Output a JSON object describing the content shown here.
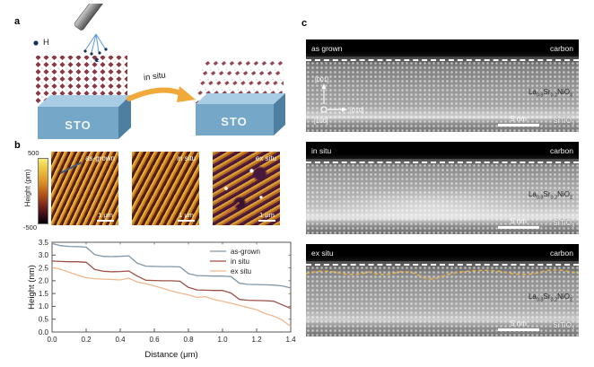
{
  "figure": {
    "panel_a": {
      "label": "a",
      "hydrogen_label": "H",
      "arrow_label": "in situ",
      "substrate_left": "STO",
      "substrate_right": "STO"
    },
    "panel_b": {
      "label": "b",
      "colorbar": {
        "max": "500",
        "min": "-500",
        "axis_label": "Height (pm)"
      },
      "afm": [
        {
          "label": "as-grown",
          "scale": "1 μm"
        },
        {
          "label": "in situ",
          "scale": "1 μm"
        },
        {
          "label": "ex situ",
          "scale": "1 μm"
        }
      ]
    },
    "panel_c": {
      "label": "c",
      "stem": [
        {
          "condition": "as grown",
          "coating": "carbon",
          "formula": {
            "el1": "La",
            "s1": "0.8",
            "el2": "Sr",
            "s2": "0.2",
            "el3": "NiO",
            "s3": "3"
          },
          "scale": "5 nm",
          "substrate": "SrTiO",
          "substrate_sub": "3",
          "dir_up": "[001]",
          "dir_right": "[010]",
          "dir_out": "[100]"
        },
        {
          "condition": "in situ",
          "coating": "carbon",
          "formula": {
            "el1": "La",
            "s1": "0.8",
            "el2": "Sr",
            "s2": "0.2",
            "el3": "NiO",
            "s3": "2"
          },
          "scale": "5 nm",
          "substrate": "SrTiO",
          "substrate_sub": "3"
        },
        {
          "condition": "ex situ",
          "coating": "carbon",
          "formula": {
            "el1": "La",
            "s1": "0.8",
            "el2": "Sr",
            "s2": "0.2",
            "el3": "NiO",
            "s3": "2"
          },
          "scale": "5 nm",
          "substrate": "SrTiO",
          "substrate_sub": "3"
        }
      ]
    }
  },
  "chart_data": {
    "type": "line",
    "title": "",
    "xlabel": "Distance (μm)",
    "ylabel": "Height (nm)",
    "xlim": [
      0,
      1.4
    ],
    "ylim": [
      0,
      3.5
    ],
    "xticks": [
      "0.0",
      "0.2",
      "0.4",
      "0.6",
      "0.8",
      "1.0",
      "1.2",
      "1.4"
    ],
    "yticks": [
      "0.0",
      "0.5",
      "1.0",
      "1.5",
      "2.0",
      "2.5",
      "3.0",
      "3.5"
    ],
    "grid": false,
    "legend_position": "top-right",
    "x": [
      0,
      0.05,
      0.1,
      0.15,
      0.2,
      0.25,
      0.3,
      0.35,
      0.4,
      0.45,
      0.5,
      0.55,
      0.6,
      0.65,
      0.7,
      0.75,
      0.8,
      0.85,
      0.9,
      0.95,
      1.0,
      1.05,
      1.1,
      1.15,
      1.2,
      1.25,
      1.3,
      1.35,
      1.4
    ],
    "series": [
      {
        "name": "as-grown",
        "color": "#8096a8",
        "values": [
          3.45,
          3.37,
          3.34,
          3.33,
          3.31,
          3.02,
          2.95,
          2.94,
          2.95,
          2.97,
          2.68,
          2.57,
          2.56,
          2.55,
          2.55,
          2.54,
          2.28,
          2.2,
          2.19,
          2.18,
          2.18,
          2.16,
          1.9,
          1.86,
          1.85,
          1.84,
          1.83,
          1.8,
          1.72
        ]
      },
      {
        "name": "in situ",
        "color": "#9c5046",
        "values": [
          2.77,
          2.75,
          2.74,
          2.74,
          2.72,
          2.44,
          2.37,
          2.35,
          2.36,
          2.38,
          2.18,
          2.02,
          2.01,
          2.0,
          2.0,
          1.98,
          1.74,
          1.64,
          1.63,
          1.62,
          1.62,
          1.52,
          1.27,
          1.24,
          1.23,
          1.22,
          1.2,
          1.06,
          0.92
        ]
      },
      {
        "name": "ex situ",
        "color": "#f0b88e",
        "values": [
          2.52,
          2.45,
          2.33,
          2.22,
          2.12,
          2.08,
          2.06,
          2.05,
          2.03,
          2.1,
          1.95,
          1.88,
          1.8,
          1.7,
          1.6,
          1.52,
          1.45,
          1.35,
          1.38,
          1.27,
          1.2,
          1.12,
          1.04,
          0.95,
          0.87,
          0.72,
          0.62,
          0.47,
          0.22
        ]
      }
    ]
  }
}
